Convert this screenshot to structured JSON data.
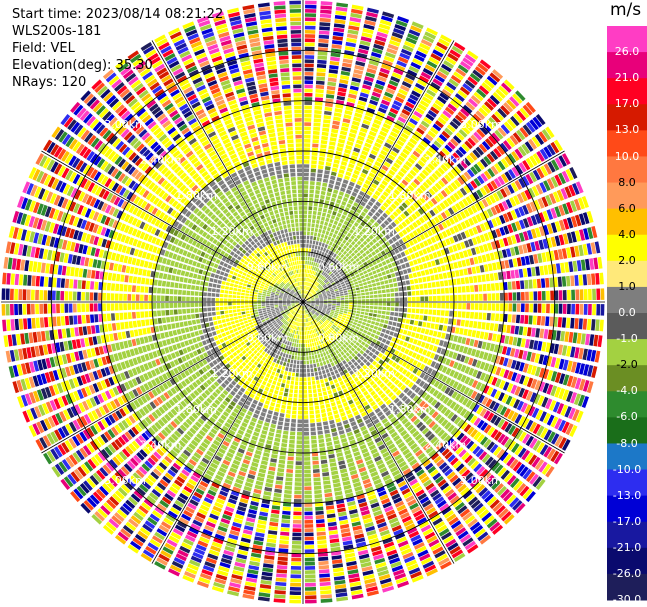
{
  "header": {
    "start_time": "Start time: 2023/08/14 08:21:22",
    "instrument": "WLS200s-181",
    "field": "Field: VEL",
    "elevation": "Elevation(deg): 35.30",
    "nrays": "NRays: 120"
  },
  "colorbar": {
    "unit": "m/s",
    "levels": [
      26.0,
      21.0,
      17.0,
      13.0,
      10.0,
      8.0,
      6.0,
      4.0,
      2.0,
      1.0,
      0.0,
      -1.0,
      -2.0,
      -4.0,
      -6.0,
      -8.0,
      -10.0,
      -13.0,
      -17.0,
      -21.0,
      -26.0,
      -30.0
    ],
    "labels": [
      "26.0",
      "21.0",
      "17.0",
      "13.0",
      "10.0",
      "8.0",
      "6.0",
      "4.0",
      "2.0",
      "1.0",
      "0.0",
      "-1.0",
      "-2.0",
      "-4.0",
      "-6.0",
      "-8.0",
      "-10.0",
      "-13.0",
      "-17.0",
      "-21.0",
      "-26.0",
      "-30.0"
    ],
    "colors": [
      "#ff3dc4",
      "#e8007a",
      "#ff0022",
      "#d61a00",
      "#ff4a18",
      "#ff7840",
      "#ff9a5a",
      "#ffbf00",
      "#ffff00",
      "#ffe97a",
      "#7e7e7e",
      "#5b5b5b",
      "#a3d141",
      "#6b8e23",
      "#2e8b2e",
      "#1a6e1a",
      "#1c78c8",
      "#2d2df0",
      "#0000d6",
      "#1818a0",
      "#0a0a6e",
      "#1e1e5a"
    ]
  },
  "chart_data": {
    "type": "ppi",
    "field": "VEL",
    "units": "m/s",
    "elevation_deg": 35.3,
    "nrays": 120,
    "range_rings_km": [
      0.6,
      1.2,
      1.8,
      2.4,
      3.0
    ],
    "range_ring_labels": [
      "0.60km",
      "1.20km",
      "1.80km",
      "2.40km",
      "3.00km"
    ],
    "max_range_km": 3.6,
    "spokes_deg": [
      0,
      30,
      60,
      90,
      120,
      150,
      180,
      210,
      240,
      270,
      300,
      330
    ],
    "velocity_regimes": [
      {
        "from_km": 0.0,
        "to_km": 0.6,
        "description_values": [
          0.0,
          -1.0,
          -2.0,
          2.0
        ]
      },
      {
        "from_km": 0.6,
        "to_km": 1.8,
        "description_values": [
          0.0,
          -1.0,
          -2.0,
          2.0,
          -4.0
        ]
      },
      {
        "from_km": 1.8,
        "to_km": 2.4,
        "description_values": [
          2.0,
          -2.0,
          0.0,
          8.0
        ]
      },
      {
        "from_km": 2.4,
        "to_km": 3.6,
        "description_values": [
          26.0,
          21.0,
          17.0,
          13.0,
          10.0,
          8.0,
          6.0,
          4.0,
          2.0,
          -6.0,
          -13.0,
          -17.0,
          -21.0,
          -26.0
        ]
      }
    ]
  }
}
